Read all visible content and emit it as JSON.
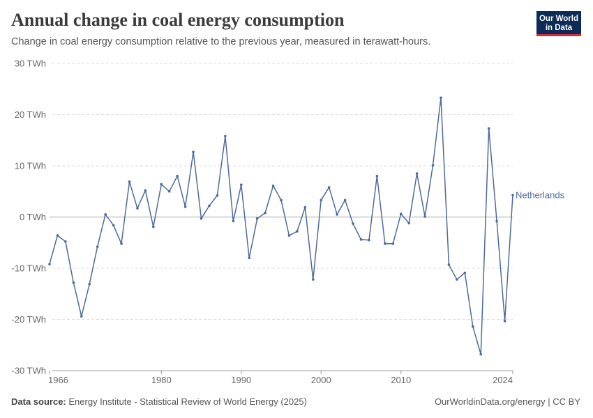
{
  "header": {
    "title": "Annual change in coal energy consumption",
    "subtitle": "Change in coal energy consumption relative to the previous year, measured in terawatt-hours.",
    "logo_line1": "Our World",
    "logo_line2": "in Data"
  },
  "footer": {
    "source_label": "Data source:",
    "source_text": "Energy Institute - Statistical Review of World Energy (2025)",
    "credit": "OurWorldinData.org/energy | CC BY"
  },
  "colors": {
    "series": "#4c6a9c",
    "grid": "#dddddd",
    "zero_line": "#a0a0a0"
  },
  "chart_data": {
    "type": "line",
    "title": "Annual change in coal energy consumption",
    "subtitle": "Change in coal energy consumption relative to the previous year, measured in terawatt-hours.",
    "xlabel": "",
    "ylabel": "",
    "xlim": [
      1966,
      2024
    ],
    "ylim": [
      -30,
      30
    ],
    "y_ticks": [
      -30,
      -20,
      -10,
      0,
      10,
      20,
      30
    ],
    "y_tick_labels": [
      "-30 TWh",
      "-20 TWh",
      "-10 TWh",
      "0 TWh",
      "10 TWh",
      "20 TWh",
      "30 TWh"
    ],
    "x_ticks": [
      1966,
      1980,
      1990,
      2000,
      2010,
      2024
    ],
    "x_tick_labels": [
      "1966",
      "1980",
      "1990",
      "2000",
      "2010",
      "2024"
    ],
    "grid": "horizontal dashed",
    "legend": "inline label at end of line",
    "series": [
      {
        "name": "Netherlands",
        "x": [
          1966,
          1967,
          1968,
          1969,
          1970,
          1971,
          1972,
          1973,
          1974,
          1975,
          1976,
          1977,
          1978,
          1979,
          1980,
          1981,
          1982,
          1983,
          1984,
          1985,
          1986,
          1987,
          1988,
          1989,
          1990,
          1991,
          1992,
          1993,
          1994,
          1995,
          1996,
          1997,
          1998,
          1999,
          2000,
          2001,
          2002,
          2003,
          2004,
          2005,
          2006,
          2007,
          2008,
          2009,
          2010,
          2011,
          2012,
          2013,
          2014,
          2015,
          2016,
          2017,
          2018,
          2019,
          2020,
          2021,
          2022,
          2023,
          2024
        ],
        "values": [
          -9.2,
          -3.6,
          -4.8,
          -12.8,
          -19.4,
          -13.1,
          -5.8,
          0.5,
          -1.6,
          -5.2,
          6.9,
          1.7,
          5.2,
          -1.9,
          6.4,
          5.0,
          8.0,
          2.0,
          12.7,
          -0.3,
          2.2,
          4.2,
          15.8,
          -0.8,
          6.3,
          -8.0,
          -0.3,
          0.8,
          6.1,
          3.3,
          -3.6,
          -2.8,
          1.9,
          -12.2,
          3.3,
          5.8,
          0.5,
          3.3,
          -1.3,
          -4.4,
          -4.5,
          8.0,
          -5.2,
          -5.2,
          0.6,
          -1.2,
          8.5,
          0.1,
          10.1,
          23.3,
          -9.3,
          -12.2,
          -10.9,
          -21.4,
          -26.8,
          17.3,
          -0.8,
          -20.3,
          4.3
        ]
      }
    ]
  }
}
